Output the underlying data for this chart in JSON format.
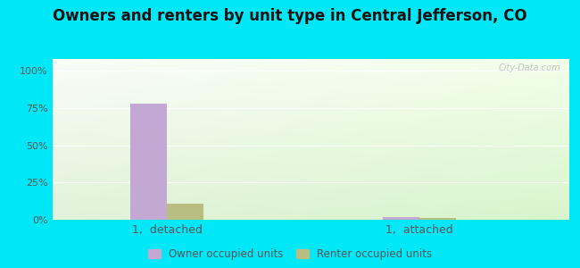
{
  "title": "Owners and renters by unit type in Central Jefferson, CO",
  "title_fontsize": 12,
  "categories": [
    "1,  detached",
    "1,  attached"
  ],
  "owner_values": [
    78,
    2
  ],
  "renter_values": [
    11,
    1
  ],
  "owner_color": "#c4a8d4",
  "renter_color": "#b8be82",
  "bar_width": 0.32,
  "group_positions": [
    1.0,
    3.2
  ],
  "yticks": [
    0,
    25,
    50,
    75,
    100
  ],
  "yticklabels": [
    "0%",
    "25%",
    "50%",
    "75%",
    "100%"
  ],
  "ylim": [
    0,
    108
  ],
  "xlim": [
    0.0,
    4.5
  ],
  "bg_outer": "#00e8f8",
  "legend_owner_label": "Owner occupied units",
  "legend_renter_label": "Renter occupied units",
  "watermark": "City-Data.com",
  "tick_fontsize": 8,
  "xlabel_fontsize": 9
}
